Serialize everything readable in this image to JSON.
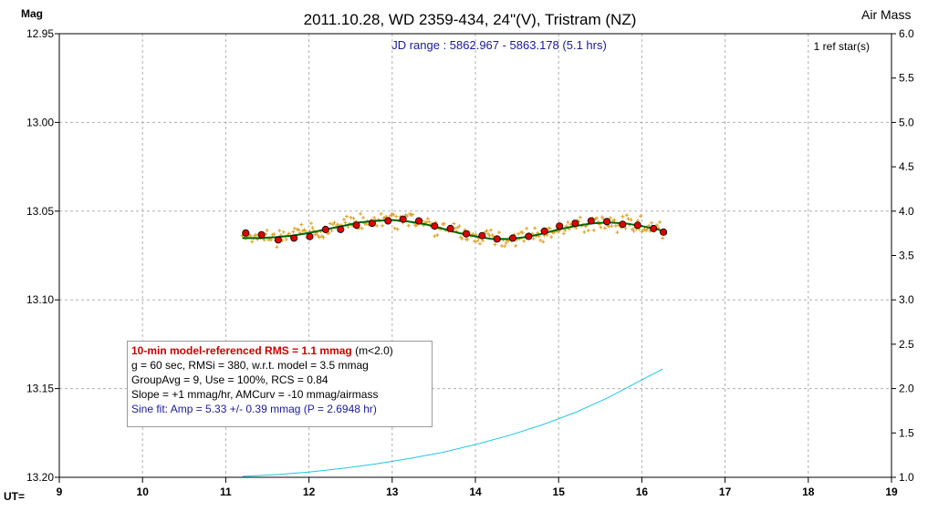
{
  "header": {
    "title": "2011.10.28, WD 2359-434, 24\"(V), Tristram (NZ)",
    "left_axis_label": "Mag",
    "right_axis_label": "Air Mass",
    "bottom_axis_label": "UT=",
    "jd_range": "JD range : 5862.967 - 5863.178 (5.1 hrs)",
    "ref_stars": "1 ref star(s)"
  },
  "legend": {
    "rms_text": "10-min model-referenced RMS = 1.1 mmag",
    "rms_suffix": "(m<2.0)",
    "line2": "g = 60 sec, RMSi = 380, w.r.t. model = 3.5 mmag",
    "line3": "GroupAvg = 9, Use = 100%, RCS = 0.84",
    "line4": "Slope = +1 mmag/hr, AMCurv = -10 mmag/airmass",
    "line5": "Sine fit: Amp = 5.33 +/- 0.39 mmag (P = 2.6948 hr)"
  },
  "colors": {
    "raw_points": "#d9a020",
    "group_avg": "#e00000",
    "model_line": "#006600",
    "airmass_line": "#1ec8e0",
    "grid": "#b0b0b0",
    "jd_text": "#1a1a99"
  },
  "chart_data": {
    "type": "scatter",
    "title": "2011.10.28, WD 2359-434, 24\"(V), Tristram (NZ)",
    "xlabel": "UT=",
    "ylabel": "Mag",
    "y2label": "Air Mass",
    "xlim": [
      9,
      19
    ],
    "ylim": [
      13.2,
      12.95
    ],
    "y2lim": [
      1.0,
      6.0
    ],
    "x_ticks": [
      9,
      10,
      11,
      12,
      13,
      14,
      15,
      16,
      17,
      18,
      19
    ],
    "y_ticks": [
      "12.95",
      "13.00",
      "13.05",
      "13.10",
      "13.15",
      "13.20"
    ],
    "y2_ticks": [
      "6.0",
      "5.5",
      "5.0",
      "4.5",
      "4.0",
      "3.5",
      "3.0",
      "2.5",
      "2.0",
      "1.5",
      "1.0"
    ],
    "grid": true,
    "series": [
      {
        "name": "group averages",
        "x": [
          11.24,
          11.43,
          11.63,
          11.82,
          12.01,
          12.2,
          12.38,
          12.57,
          12.76,
          12.95,
          13.13,
          13.32,
          13.51,
          13.7,
          13.89,
          14.08,
          14.26,
          14.45,
          14.64,
          14.83,
          15.01,
          15.2,
          15.39,
          15.58,
          15.77,
          15.95,
          16.14,
          16.26
        ],
        "y": [
          13.0623,
          13.0633,
          13.0662,
          13.0652,
          13.0643,
          13.0603,
          13.0603,
          13.0579,
          13.0569,
          13.0555,
          13.0545,
          13.0555,
          13.0584,
          13.0598,
          13.0628,
          13.0638,
          13.0657,
          13.0652,
          13.0642,
          13.0613,
          13.0584,
          13.0569,
          13.0555,
          13.0559,
          13.0574,
          13.0579,
          13.0598,
          13.0618
        ]
      },
      {
        "name": "model",
        "x": [
          11.2,
          11.4,
          11.6,
          11.8,
          12.0,
          12.2,
          12.4,
          12.6,
          12.8,
          13.0,
          13.2,
          13.4,
          13.6,
          13.8,
          14.0,
          14.2,
          14.4,
          14.6,
          14.8,
          15.0,
          15.2,
          15.4,
          15.6,
          15.8,
          16.0,
          16.2,
          16.3
        ],
        "y": [
          13.0652,
          13.0652,
          13.0647,
          13.0638,
          13.0623,
          13.0603,
          13.0584,
          13.0564,
          13.0555,
          13.055,
          13.0559,
          13.0574,
          13.0598,
          13.0623,
          13.0642,
          13.0657,
          13.0657,
          13.0647,
          13.0628,
          13.0603,
          13.0584,
          13.0569,
          13.0564,
          13.0569,
          13.0584,
          13.0603,
          13.0628
        ]
      },
      {
        "name": "air mass",
        "axis": "right",
        "x": [
          11.2,
          11.6,
          12.0,
          12.4,
          12.8,
          13.2,
          13.6,
          14.0,
          14.4,
          14.8,
          15.2,
          15.6,
          16.0,
          16.25
        ],
        "y": [
          1.01,
          1.03,
          1.06,
          1.1,
          1.15,
          1.21,
          1.28,
          1.37,
          1.47,
          1.59,
          1.73,
          1.9,
          2.1,
          2.22
        ]
      }
    ]
  }
}
